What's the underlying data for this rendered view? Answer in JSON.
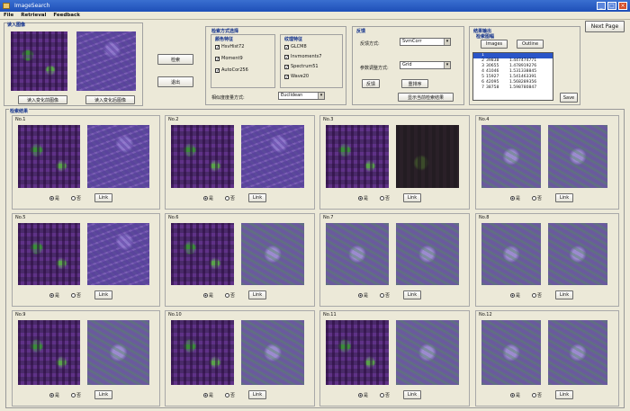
{
  "window": {
    "title": "ImageSearch"
  },
  "menu": [
    "File",
    "Retrieval",
    "Feedback"
  ],
  "input_panel": {
    "title": "读入图像",
    "load_before_label": "读入变化前图像",
    "load_after_label": "读入变化后图像"
  },
  "actions": {
    "search_label": "检索",
    "exit_label": "退出"
  },
  "search_method": {
    "title": "检索方式选择",
    "color_title": "颜色特征",
    "color_options": [
      {
        "label": "HsvHist72",
        "checked": true
      },
      {
        "label": "Moment9",
        "checked": true
      },
      {
        "label": "AutoCor256",
        "checked": true
      }
    ],
    "texture_title": "纹理特征",
    "texture_options": [
      {
        "label": "GLCM8",
        "checked": true
      },
      {
        "label": "Invmoments7",
        "checked": true
      },
      {
        "label": "Spectrum51",
        "checked": true
      },
      {
        "label": "Wave20",
        "checked": true
      }
    ],
    "metric_label": "相似度度量方式:",
    "metric_value": "Euclidean"
  },
  "feedback": {
    "title": "反馈",
    "method_label": "反馈方式:",
    "method_value": "SvmCorr",
    "param_label": "参数调整方式:",
    "param_value": "Grid",
    "feedback_button": "反馈",
    "retrain_button": "重排序",
    "show_button": "显示当前检索结果"
  },
  "output": {
    "title": "结果输出",
    "sort_label": "检索图幅",
    "images_button": "Images",
    "outline_button": "Outline",
    "save_button": "Save",
    "list_rows": [
      {
        "idx": "1",
        "id": "",
        "score": ""
      },
      {
        "idx": "2",
        "id": "39838",
        "score": "1.447474771"
      },
      {
        "idx": "3",
        "id": "30655",
        "score": "1.478919276"
      },
      {
        "idx": "4",
        "id": "41046",
        "score": "1.531338845"
      },
      {
        "idx": "5",
        "id": "15927",
        "score": "1.541463391"
      },
      {
        "idx": "6",
        "id": "42095",
        "score": "1.568289356"
      },
      {
        "idx": "7",
        "id": "38758",
        "score": "1.598780847"
      }
    ]
  },
  "next_page_label": "Next Page",
  "results": {
    "title": "检索结果",
    "yes_label": "是",
    "no_label": "否",
    "link_label": "Link",
    "items": [
      "No.1",
      "No.2",
      "No.3",
      "No.4",
      "No.5",
      "No.6",
      "No.7",
      "No.8",
      "No.9",
      "No.10",
      "No.11",
      "No.12"
    ]
  }
}
